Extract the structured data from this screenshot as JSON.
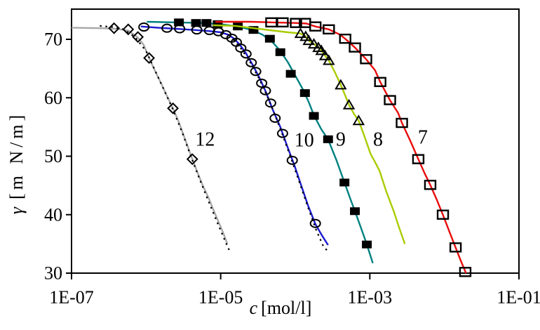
{
  "chart_data": {
    "type": "line",
    "title": "",
    "description": "Surface tension gamma versus surfactant concentration c on a logarithmic x-axis; five isotherms labelled 12, 10, 9, 8, 7 with experimental markers and fitted curves (dotted black fits on curves 12 and 10).",
    "grid": false,
    "legend_position": "inline-curve-labels",
    "background": "#ffffff",
    "frame_color": "#000000",
    "x_axis": {
      "title_symbol": "c",
      "title_units": "[mol/l]",
      "scale": "log",
      "unit": "mol/l",
      "lim_log10": [
        -7,
        -1
      ],
      "ticks": [
        {
          "label": "1E-07",
          "log10": -7
        },
        {
          "label": "1E-05",
          "log10": -5
        },
        {
          "label": "1E-03",
          "log10": -3
        },
        {
          "label": "1E-01",
          "log10": -1
        }
      ]
    },
    "y_axis": {
      "title_symbol": "γ",
      "title_units": "[m N/m]",
      "unit": "mN/m",
      "lim": [
        30,
        75.2
      ],
      "ticks": [
        {
          "label": "70",
          "value": 70
        },
        {
          "label": "60",
          "value": 60
        },
        {
          "label": "50",
          "value": 50
        },
        {
          "label": "40",
          "value": 40
        },
        {
          "label": "30",
          "value": 30
        }
      ]
    },
    "x_values_are": "log10(c [mol/l])",
    "series": [
      {
        "name": "12",
        "label": "12",
        "label_at": [
          -5.21,
          52.8
        ],
        "color": "#a8a8a8",
        "marker": "open-diamond",
        "marker_color": "#000000",
        "fit_line_style": "dotted-black",
        "line": [
          [
            -7.0,
            72.0
          ],
          [
            -6.6,
            71.9
          ],
          [
            -6.4,
            71.8
          ],
          [
            -6.24,
            71.5
          ],
          [
            -6.11,
            70.3
          ],
          [
            -6.03,
            69.0
          ],
          [
            -5.96,
            66.8
          ],
          [
            -5.88,
            64.6
          ],
          [
            -5.8,
            62.5
          ],
          [
            -5.72,
            60.3
          ],
          [
            -5.64,
            58.2
          ],
          [
            -5.56,
            55.8
          ],
          [
            -5.5,
            53.7
          ],
          [
            -5.44,
            51.6
          ],
          [
            -5.38,
            49.5
          ],
          [
            -5.31,
            47.2
          ],
          [
            -5.24,
            45.0
          ],
          [
            -5.16,
            42.8
          ],
          [
            -5.09,
            40.6
          ],
          [
            -5.03,
            38.8
          ],
          [
            -4.97,
            37.0
          ],
          [
            -4.91,
            35.0
          ]
        ],
        "fit_line": [
          [
            -6.62,
            72.3
          ],
          [
            -6.45,
            72.1
          ],
          [
            -6.3,
            71.7
          ],
          [
            -6.15,
            70.4
          ],
          [
            -6.0,
            68.0
          ],
          [
            -5.9,
            65.2
          ],
          [
            -5.78,
            61.9
          ],
          [
            -5.65,
            58.3
          ],
          [
            -5.52,
            54.2
          ],
          [
            -5.4,
            50.0
          ],
          [
            -5.28,
            46.0
          ],
          [
            -5.15,
            41.9
          ],
          [
            -5.03,
            38.2
          ],
          [
            -4.93,
            35.2
          ],
          [
            -4.88,
            33.8
          ]
        ],
        "points": [
          [
            -6.43,
            71.9
          ],
          [
            -6.24,
            71.7
          ],
          [
            -6.11,
            70.4
          ],
          [
            -5.96,
            66.8
          ],
          [
            -5.64,
            58.2
          ],
          [
            -5.38,
            49.5
          ]
        ]
      },
      {
        "name": "10",
        "label": "10",
        "label_at": [
          -3.88,
          52.7
        ],
        "color": "#1a1acd",
        "marker": "open-circle",
        "marker_color": "#000000",
        "fit_line_style": "dotted-black",
        "line": [
          [
            -6.07,
            72.2
          ],
          [
            -5.85,
            72.0
          ],
          [
            -5.6,
            71.8
          ],
          [
            -5.35,
            71.6
          ],
          [
            -5.15,
            71.4
          ],
          [
            -5.0,
            71.2
          ],
          [
            -4.9,
            70.8
          ],
          [
            -4.83,
            70.2
          ],
          [
            -4.75,
            69.2
          ],
          [
            -4.66,
            67.6
          ],
          [
            -4.57,
            65.6
          ],
          [
            -4.48,
            63.4
          ],
          [
            -4.39,
            60.9
          ],
          [
            -4.3,
            57.9
          ],
          [
            -4.2,
            55.0
          ],
          [
            -4.11,
            51.8
          ],
          [
            -4.01,
            48.4
          ],
          [
            -3.92,
            45.0
          ],
          [
            -3.83,
            41.6
          ],
          [
            -3.73,
            38.4
          ],
          [
            -3.64,
            36.4
          ],
          [
            -3.56,
            34.8
          ]
        ],
        "fit_line": [
          [
            -4.83,
            70.0
          ],
          [
            -4.72,
            68.3
          ],
          [
            -4.6,
            66.0
          ],
          [
            -4.49,
            63.4
          ],
          [
            -4.38,
            60.4
          ],
          [
            -4.27,
            57.0
          ],
          [
            -4.16,
            53.3
          ],
          [
            -4.05,
            49.4
          ],
          [
            -3.94,
            45.4
          ],
          [
            -3.83,
            41.3
          ],
          [
            -3.72,
            37.4
          ],
          [
            -3.62,
            34.5
          ],
          [
            -3.55,
            33.6
          ]
        ],
        "points": [
          [
            -6.03,
            72.1
          ],
          [
            -5.72,
            71.9
          ],
          [
            -5.55,
            71.8
          ],
          [
            -5.32,
            71.6
          ],
          [
            -5.15,
            71.5
          ],
          [
            -5.03,
            71.3
          ],
          [
            -4.93,
            70.8
          ],
          [
            -4.85,
            70.2
          ],
          [
            -4.79,
            69.5
          ],
          [
            -4.73,
            68.5
          ],
          [
            -4.66,
            67.5
          ],
          [
            -4.59,
            66.0
          ],
          [
            -4.53,
            64.5
          ],
          [
            -4.45,
            62.5
          ],
          [
            -4.4,
            61.2
          ],
          [
            -4.33,
            59.1
          ],
          [
            -4.27,
            56.5
          ],
          [
            -4.17,
            53.9
          ],
          [
            -4.04,
            49.3
          ],
          [
            -3.73,
            38.5
          ]
        ]
      },
      {
        "name": "9",
        "label": "9",
        "label_at": [
          -3.39,
          52.8
        ],
        "color": "#008080",
        "marker": "filled-square",
        "marker_color": "#000000",
        "fit_line_style": "none",
        "line": [
          [
            -5.99,
            73.0
          ],
          [
            -5.6,
            72.9
          ],
          [
            -5.25,
            72.8
          ],
          [
            -5.0,
            72.6
          ],
          [
            -4.77,
            72.2
          ],
          [
            -4.58,
            71.6
          ],
          [
            -4.44,
            70.8
          ],
          [
            -4.31,
            69.6
          ],
          [
            -4.2,
            68.0
          ],
          [
            -4.1,
            66.1
          ],
          [
            -4.0,
            63.8
          ],
          [
            -3.9,
            61.5
          ],
          [
            -3.82,
            59.3
          ],
          [
            -3.75,
            57.0
          ],
          [
            -3.65,
            54.6
          ],
          [
            -3.56,
            52.9
          ],
          [
            -3.45,
            49.4
          ],
          [
            -3.34,
            45.5
          ],
          [
            -3.25,
            42.3
          ],
          [
            -3.2,
            40.6
          ],
          [
            -3.12,
            37.8
          ],
          [
            -3.04,
            34.9
          ],
          [
            -2.96,
            31.7
          ]
        ],
        "fit_line": null,
        "points": [
          [
            -5.56,
            72.9
          ],
          [
            -5.33,
            72.8
          ],
          [
            -5.19,
            72.8
          ],
          [
            -5.04,
            72.6
          ],
          [
            -4.77,
            72.2
          ],
          [
            -4.56,
            71.6
          ],
          [
            -4.34,
            70.1
          ],
          [
            -4.2,
            67.8
          ],
          [
            -4.06,
            64.1
          ],
          [
            -3.87,
            60.8
          ],
          [
            -3.75,
            56.9
          ],
          [
            -3.56,
            52.9
          ],
          [
            -3.34,
            45.5
          ],
          [
            -3.2,
            40.6
          ],
          [
            -3.04,
            34.9
          ]
        ]
      },
      {
        "name": "8",
        "label": "8",
        "label_at": [
          -2.89,
          52.8
        ],
        "color": "#a8cc00",
        "marker": "open-triangle",
        "marker_color": "#000000",
        "fit_line_style": "none",
        "line": [
          [
            -5.1,
            72.4
          ],
          [
            -4.8,
            72.3
          ],
          [
            -4.55,
            71.9
          ],
          [
            -4.3,
            71.5
          ],
          [
            -4.1,
            71.2
          ],
          [
            -3.93,
            71.0
          ],
          [
            -3.86,
            70.5
          ],
          [
            -3.82,
            69.8
          ],
          [
            -3.75,
            69.2
          ],
          [
            -3.69,
            68.6
          ],
          [
            -3.65,
            68.1
          ],
          [
            -3.6,
            67.2
          ],
          [
            -3.55,
            66.4
          ],
          [
            -3.47,
            64.4
          ],
          [
            -3.39,
            62.2
          ],
          [
            -3.33,
            60.4
          ],
          [
            -3.28,
            58.8
          ],
          [
            -3.21,
            57.2
          ],
          [
            -3.15,
            56.1
          ],
          [
            -3.08,
            53.7
          ],
          [
            -2.99,
            50.4
          ],
          [
            -2.93,
            49.0
          ],
          [
            -2.87,
            47.5
          ],
          [
            -2.78,
            44.0
          ],
          [
            -2.68,
            40.6
          ],
          [
            -2.61,
            37.9
          ],
          [
            -2.53,
            35.0
          ]
        ],
        "fit_line": null,
        "points": [
          [
            -3.93,
            71.0
          ],
          [
            -3.86,
            70.5
          ],
          [
            -3.82,
            69.8
          ],
          [
            -3.75,
            69.2
          ],
          [
            -3.69,
            68.6
          ],
          [
            -3.65,
            68.1
          ],
          [
            -3.6,
            67.2
          ],
          [
            -3.55,
            66.4
          ],
          [
            -3.39,
            62.2
          ],
          [
            -3.28,
            58.8
          ],
          [
            -3.15,
            56.1
          ]
        ]
      },
      {
        "name": "7",
        "label": "7",
        "label_at": [
          -2.29,
          53.2
        ],
        "color": "#e80c0c",
        "marker": "open-square",
        "marker_color": "#000000",
        "fit_line_style": "none",
        "line": [
          [
            -5.07,
            73.0
          ],
          [
            -4.6,
            73.0
          ],
          [
            -4.3,
            72.9
          ],
          [
            -4.0,
            72.8
          ],
          [
            -3.85,
            72.7
          ],
          [
            -3.73,
            72.2
          ],
          [
            -3.55,
            71.7
          ],
          [
            -3.4,
            70.8
          ],
          [
            -3.33,
            70.1
          ],
          [
            -3.2,
            68.6
          ],
          [
            -3.05,
            66.6
          ],
          [
            -2.93,
            64.7
          ],
          [
            -2.86,
            62.7
          ],
          [
            -2.73,
            59.6
          ],
          [
            -2.62,
            57.4
          ],
          [
            -2.57,
            55.7
          ],
          [
            -2.46,
            52.7
          ],
          [
            -2.35,
            49.5
          ],
          [
            -2.27,
            47.2
          ],
          [
            -2.19,
            45.1
          ],
          [
            -2.1,
            42.5
          ],
          [
            -2.02,
            40.0
          ],
          [
            -1.93,
            37.0
          ],
          [
            -1.85,
            34.4
          ],
          [
            -1.78,
            32.1
          ],
          [
            -1.71,
            30.0
          ]
        ],
        "fit_line": null,
        "points": [
          [
            -4.32,
            72.9
          ],
          [
            -4.17,
            72.9
          ],
          [
            -3.99,
            72.8
          ],
          [
            -3.87,
            72.8
          ],
          [
            -3.73,
            72.2
          ],
          [
            -3.55,
            71.7
          ],
          [
            -3.33,
            70.1
          ],
          [
            -3.2,
            68.6
          ],
          [
            -3.05,
            66.6
          ],
          [
            -2.86,
            62.7
          ],
          [
            -2.73,
            59.6
          ],
          [
            -2.57,
            55.7
          ],
          [
            -2.35,
            49.5
          ],
          [
            -2.19,
            45.1
          ],
          [
            -2.02,
            40.0
          ],
          [
            -1.85,
            34.4
          ],
          [
            -1.72,
            30.2
          ]
        ]
      }
    ]
  }
}
